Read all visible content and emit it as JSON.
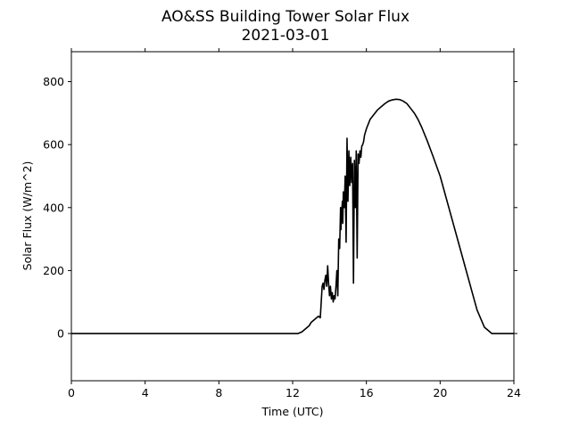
{
  "chart_data": {
    "type": "line",
    "title": "AO&SS Building Tower Solar Flux",
    "subtitle": "2021-03-01",
    "xlabel": "Time (UTC)",
    "ylabel": "Solar Flux (W/m^2)",
    "xlim": [
      0,
      24
    ],
    "ylim": [
      -150,
      895
    ],
    "x_ticks": [
      0,
      4,
      8,
      12,
      16,
      20,
      24
    ],
    "y_ticks": [
      0,
      200,
      400,
      600,
      800
    ],
    "grid": false,
    "line_color": "#000000",
    "series": [
      {
        "x": [
          0,
          12.0,
          12.3,
          12.5,
          12.7,
          12.9,
          13.0,
          13.2,
          13.4,
          13.5,
          13.6,
          13.65,
          13.7,
          13.75,
          13.8,
          13.85,
          13.9,
          13.95,
          14.0,
          14.05,
          14.1,
          14.15,
          14.2,
          14.25,
          14.3,
          14.35,
          14.4,
          14.45,
          14.5,
          14.55,
          14.6,
          14.62,
          14.65,
          14.7,
          14.72,
          14.75,
          14.8,
          14.85,
          14.9,
          14.95,
          15.0,
          15.05,
          15.1,
          15.15,
          15.2,
          15.25,
          15.3,
          15.35,
          15.4,
          15.45,
          15.5,
          15.55,
          15.6,
          15.65,
          15.7,
          15.75,
          15.8,
          15.85,
          15.9,
          16.0,
          16.1,
          16.2,
          16.4,
          16.6,
          16.8,
          17.0,
          17.2,
          17.4,
          17.6,
          17.8,
          18.0,
          18.2,
          18.4,
          18.6,
          18.8,
          19.0,
          19.3,
          19.6,
          20.0,
          20.4,
          20.8,
          21.2,
          21.6,
          22.0,
          22.4,
          22.8,
          23.2,
          23.5,
          23.8,
          23.9,
          24.0
        ],
        "y": [
          0,
          0,
          0,
          5,
          15,
          25,
          35,
          45,
          55,
          50,
          150,
          160,
          140,
          170,
          185,
          150,
          215,
          160,
          120,
          150,
          110,
          130,
          100,
          120,
          110,
          150,
          200,
          120,
          300,
          270,
          400,
          330,
          380,
          420,
          350,
          450,
          400,
          500,
          290,
          620,
          420,
          580,
          470,
          560,
          480,
          540,
          160,
          550,
          400,
          580,
          240,
          570,
          540,
          580,
          560,
          595,
          600,
          610,
          630,
          650,
          665,
          680,
          695,
          710,
          720,
          730,
          738,
          742,
          744,
          743,
          738,
          730,
          715,
          700,
          680,
          655,
          612,
          565,
          500,
          415,
          330,
          245,
          160,
          75,
          20,
          0,
          0,
          0,
          0,
          0,
          0
        ]
      }
    ]
  }
}
